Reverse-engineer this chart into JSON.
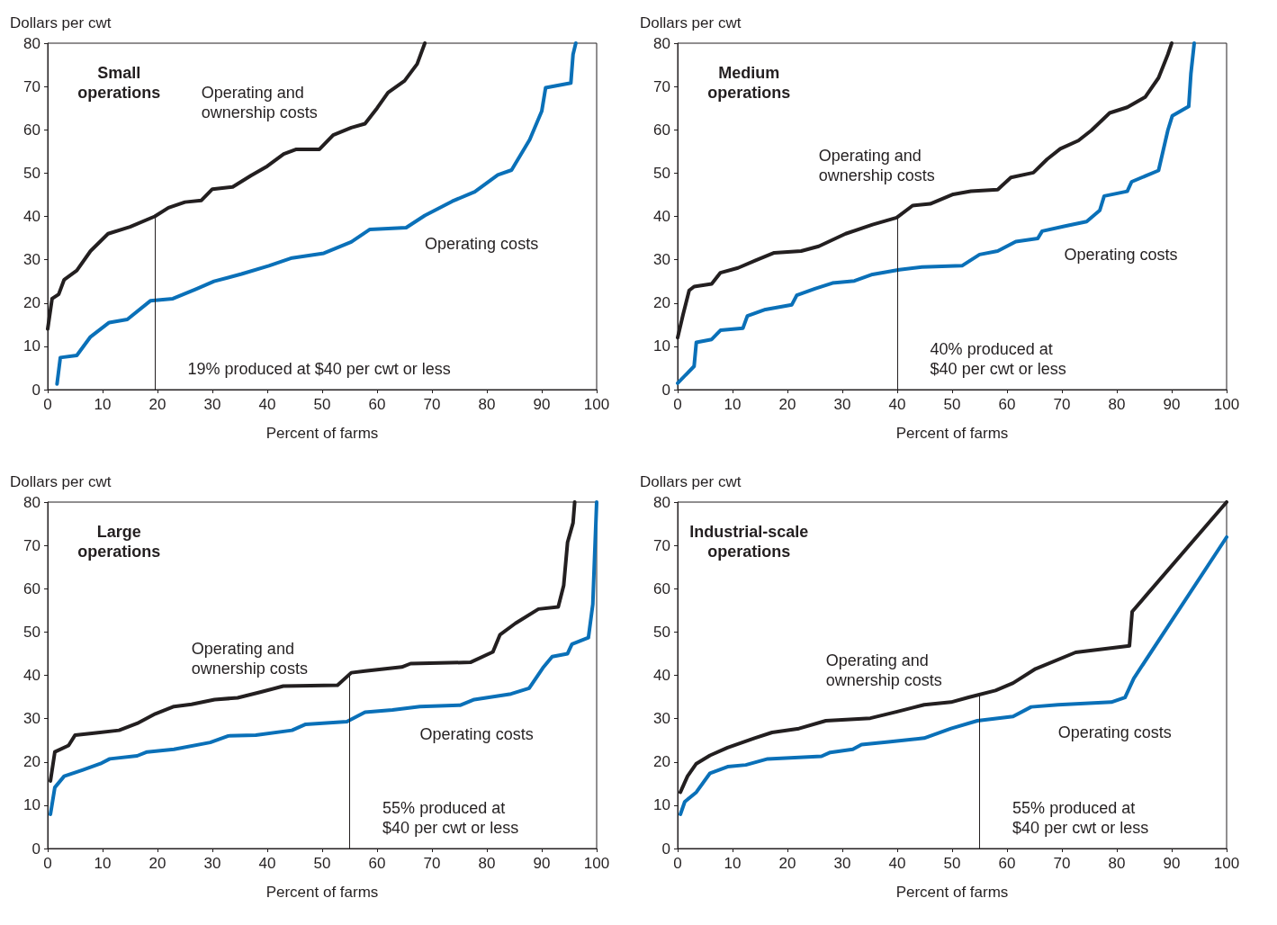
{
  "chart_data": [
    {
      "type": "line",
      "title": "Small\noperations",
      "xlabel": "Percent of farms",
      "ylabel": "Dollars per cwt",
      "xlim": [
        0,
        100
      ],
      "xticks": [
        0,
        10,
        20,
        30,
        40,
        50,
        60,
        70,
        80,
        90,
        100
      ],
      "ylim": [
        0,
        80
      ],
      "yticks": [
        0,
        10,
        20,
        30,
        40,
        50,
        60,
        70,
        80
      ],
      "grid": false,
      "annotations": [
        "19% produced at $40 per cwt or less"
      ],
      "ref_lines": [
        {
          "axis": "x",
          "value": 19.5,
          "color": "#231f20"
        }
      ],
      "series": [
        {
          "name": "Operating and\nownership costs",
          "color": "#231f20",
          "x": [
            0,
            0.8,
            2,
            3,
            5.3,
            7.8,
            11,
            15,
            19.5,
            22,
            25,
            28,
            30,
            33.7,
            37,
            40,
            43,
            45.3,
            49.5,
            52,
            55.3,
            57.8,
            60,
            62,
            65,
            67.3,
            68.7
          ],
          "values": [
            14,
            21,
            22,
            25.4,
            27.5,
            32,
            36,
            37.6,
            40,
            42,
            43.3,
            43.7,
            46.3,
            46.8,
            49.4,
            51.6,
            54.4,
            55.5,
            55.5,
            58.8,
            60.5,
            61.4,
            65,
            68.6,
            71.3,
            75.2,
            80
          ]
        },
        {
          "name": "Operating costs",
          "color": "#0a70b8",
          "x": [
            1.7,
            2.3,
            5.3,
            7.8,
            11.2,
            14.5,
            18.7,
            22.8,
            27,
            30.3,
            35.3,
            40.3,
            44.5,
            50.3,
            55.3,
            58.7,
            65.3,
            68.7,
            73.7,
            77.8,
            82,
            84.5,
            87.8,
            90,
            90.7,
            95.3,
            95.7,
            96.2
          ],
          "values": [
            1.3,
            7.4,
            7.9,
            12.2,
            15.5,
            16.2,
            20.5,
            21,
            23.2,
            25,
            26.7,
            28.6,
            30.4,
            31.5,
            34.1,
            37,
            37.4,
            40.2,
            43.5,
            45.7,
            49.6,
            50.7,
            57.7,
            64.3,
            69.7,
            70.8,
            77.4,
            80
          ]
        }
      ]
    },
    {
      "type": "line",
      "title": "Medium\noperations",
      "xlabel": "Percent of farms",
      "ylabel": "Dollars per cwt",
      "xlim": [
        0,
        100
      ],
      "xticks": [
        0,
        10,
        20,
        30,
        40,
        50,
        60,
        70,
        80,
        90,
        100
      ],
      "ylim": [
        0,
        80
      ],
      "yticks": [
        0,
        10,
        20,
        30,
        40,
        50,
        60,
        70,
        80
      ],
      "grid": false,
      "annotations": [
        "40% produced at\n$40 per cwt or less"
      ],
      "ref_lines": [
        {
          "axis": "x",
          "value": 40,
          "color": "#231f20"
        }
      ],
      "series": [
        {
          "name": "Operating and\nownership costs",
          "color": "#231f20",
          "x": [
            0,
            1,
            2.1,
            3,
            6.2,
            7.8,
            11,
            14.3,
            17.6,
            22.5,
            25.7,
            30.6,
            35.5,
            39.9,
            42.8,
            46,
            50.2,
            53.4,
            58.3,
            60.7,
            64.8,
            67.3,
            69.7,
            73,
            75.4,
            78.7,
            81.9,
            85.2,
            87.6,
            89.3,
            90
          ],
          "values": [
            12,
            17.4,
            22.9,
            23.8,
            24.4,
            27,
            28.1,
            29.9,
            31.6,
            32,
            33.1,
            36,
            38.1,
            39.7,
            42.5,
            42.9,
            45.1,
            45.8,
            46.2,
            49,
            50.1,
            53.2,
            55.6,
            57.5,
            59.9,
            63.9,
            65.2,
            67.6,
            72,
            77.4,
            80
          ]
        },
        {
          "name": "Operating costs",
          "color": "#0a70b8",
          "x": [
            0,
            3,
            3.4,
            6.2,
            7.8,
            11.9,
            12.7,
            16,
            20.8,
            21.7,
            25,
            28.2,
            32.2,
            35.5,
            40.4,
            44.5,
            51.8,
            55,
            58.3,
            61.6,
            65.6,
            66.4,
            70.4,
            74.5,
            76.9,
            77.7,
            81.9,
            82.7,
            87.6,
            89.3,
            90.1,
            93.1,
            93.5,
            94.1
          ],
          "values": [
            1.5,
            5.4,
            10.9,
            11.6,
            13.7,
            14.2,
            17,
            18.5,
            19.6,
            21.8,
            23.3,
            24.6,
            25.1,
            26.6,
            27.7,
            28.3,
            28.6,
            31.2,
            32,
            34.2,
            34.9,
            36.6,
            37.7,
            38.8,
            41.4,
            44.7,
            45.8,
            48,
            50.6,
            59.9,
            63.2,
            65.4,
            73,
            80
          ]
        }
      ]
    },
    {
      "type": "line",
      "title": "Large\noperations",
      "xlabel": "Percent of farms",
      "ylabel": "Dollars per cwt",
      "xlim": [
        0,
        100
      ],
      "xticks": [
        0,
        10,
        20,
        30,
        40,
        50,
        60,
        70,
        80,
        90,
        100
      ],
      "ylim": [
        0,
        80
      ],
      "yticks": [
        0,
        10,
        20,
        30,
        40,
        50,
        60,
        70,
        80
      ],
      "grid": false,
      "annotations": [
        "55% produced at\n$40 per cwt or less"
      ],
      "ref_lines": [
        {
          "axis": "x",
          "value": 55,
          "color": "#231f20"
        }
      ],
      "series": [
        {
          "name": "Operating and\nownership costs",
          "color": "#231f20",
          "x": [
            0.5,
            1.3,
            3.8,
            5,
            8.8,
            13,
            16.3,
            19.6,
            23,
            26.2,
            30.4,
            34.6,
            38.7,
            42.9,
            52.8,
            55.3,
            57.8,
            64.5,
            66.1,
            77,
            81.1,
            82.4,
            85.2,
            89.4,
            93,
            94,
            94.7,
            95.7,
            96
          ],
          "values": [
            15.6,
            22.3,
            23.8,
            26.2,
            26.7,
            27.3,
            28.9,
            31.1,
            32.8,
            33.3,
            34.4,
            34.8,
            36.1,
            37.5,
            37.7,
            40.6,
            41,
            41.9,
            42.7,
            43,
            45.4,
            49.4,
            52,
            55.3,
            55.8,
            60.8,
            70.7,
            75.2,
            80
          ]
        },
        {
          "name": "Operating costs",
          "color": "#0a70b8",
          "x": [
            0.5,
            1.3,
            3,
            6.3,
            9.6,
            11.3,
            16.3,
            18.1,
            23,
            29.6,
            32.9,
            37.9,
            44.5,
            47,
            54.5,
            57.8,
            62.8,
            67.8,
            75.2,
            77.7,
            84.4,
            87.7,
            90.2,
            91.9,
            94.7,
            95.5,
            98.5,
            99.3,
            100
          ],
          "values": [
            7.9,
            14.1,
            16.7,
            18.1,
            19.6,
            20.7,
            21.4,
            22.3,
            22.9,
            24.5,
            26,
            26.2,
            27.3,
            28.7,
            29.3,
            31.5,
            32,
            32.8,
            33.1,
            34.4,
            35.7,
            37,
            41.7,
            44.3,
            45,
            47.2,
            48.7,
            56.4,
            80
          ]
        }
      ]
    },
    {
      "type": "line",
      "title": "Industrial-scale\noperations",
      "xlabel": "Percent of farms",
      "ylabel": "Dollars per cwt",
      "xlim": [
        0,
        100
      ],
      "xticks": [
        0,
        10,
        20,
        30,
        40,
        50,
        60,
        70,
        80,
        90,
        100
      ],
      "ylim": [
        0,
        80
      ],
      "yticks": [
        0,
        10,
        20,
        30,
        40,
        50,
        60,
        70,
        80
      ],
      "grid": false,
      "annotations": [
        "55% produced at\n$40 per cwt or less"
      ],
      "ref_lines": [
        {
          "axis": "x",
          "value": 55,
          "color": "#231f20"
        }
      ],
      "series": [
        {
          "name": "Operating and\nownership costs",
          "color": "#231f20",
          "x": [
            0.5,
            1.8,
            3.4,
            5.9,
            9.1,
            14,
            17.2,
            22.1,
            27,
            35.1,
            40,
            44.9,
            49.8,
            53,
            57.9,
            61.1,
            65.2,
            72.5,
            82.3,
            82.8,
            100
          ],
          "values": [
            13,
            16.7,
            19.6,
            21.5,
            23.3,
            25.5,
            26.8,
            27.7,
            29.5,
            30.1,
            31.6,
            33.2,
            33.8,
            34.9,
            36.5,
            38.2,
            41.5,
            45.3,
            46.8,
            54.7,
            80
          ]
        },
        {
          "name": "Operating costs",
          "color": "#0a70b8",
          "x": [
            0.5,
            1.3,
            3.4,
            5.9,
            9.1,
            12.4,
            16.4,
            26.2,
            27.8,
            31.9,
            33.5,
            38.4,
            44.9,
            49.8,
            54.6,
            61.1,
            64.4,
            69.3,
            79,
            81.5,
            83.1,
            100
          ],
          "values": [
            7.9,
            10.8,
            13,
            17.4,
            18.9,
            19.3,
            20.7,
            21.3,
            22.2,
            22.9,
            24,
            24.6,
            25.5,
            27.7,
            29.5,
            30.5,
            32.7,
            33.2,
            33.8,
            34.9,
            39.3,
            71.9
          ]
        }
      ]
    }
  ]
}
